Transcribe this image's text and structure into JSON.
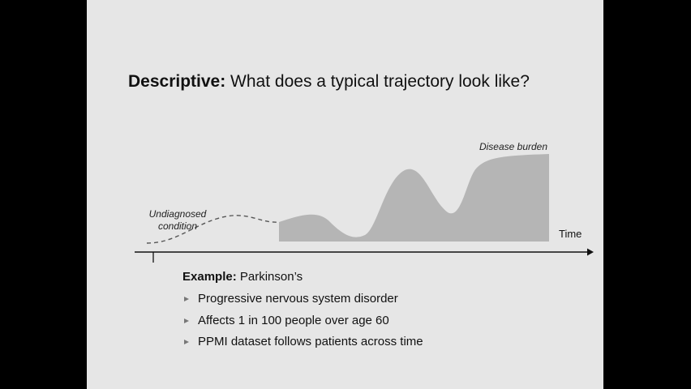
{
  "slide": {
    "title_bold": "Descriptive:",
    "title_rest": " What does a typical trajectory look like?"
  },
  "diagram": {
    "undiagnosed_label_line1": "Undiagnosed",
    "undiagnosed_label_line2": "condition",
    "burden_label": "Disease burden",
    "axis_label": "Time",
    "colors": {
      "burden_fill": "#b5b5b5",
      "dashed_line": "#555555",
      "axis": "#111111"
    }
  },
  "example": {
    "bold": "Example:",
    "rest": " Parkinson’s",
    "bullets": [
      "Progressive nervous system disorder",
      "Affects 1 in 100 people over age 60",
      "PPMI dataset follows patients across time"
    ]
  }
}
